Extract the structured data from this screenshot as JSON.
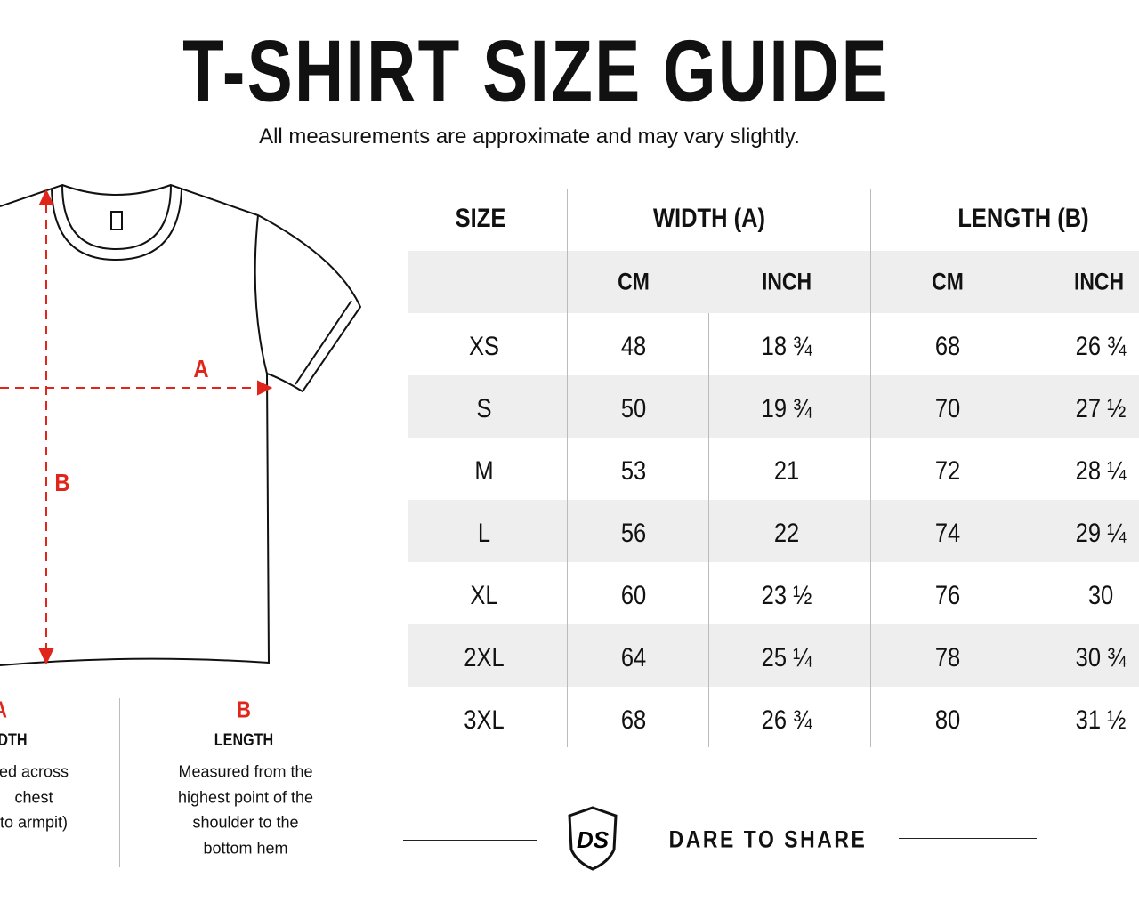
{
  "header": {
    "title": "T-SHIRT SIZE GUIDE",
    "subtitle": "All measurements are approximate and may vary slightly."
  },
  "diagram": {
    "label_a": "A",
    "label_b": "B"
  },
  "table": {
    "columns": [
      "SIZE",
      "WIDTH (A)",
      "LENGTH (B)"
    ],
    "subcolumns": [
      "CM",
      "INCH",
      "CM",
      "INCH"
    ],
    "rows": [
      [
        "XS",
        48,
        "18 ¾",
        68,
        "26 ¾"
      ],
      [
        "S",
        50,
        "19 ¾",
        70,
        "27 ½"
      ],
      [
        "M",
        53,
        21,
        72,
        "28 ¼"
      ],
      [
        "L",
        56,
        22,
        74,
        "29 ¼"
      ],
      [
        "XL",
        60,
        "23 ½",
        76,
        30
      ],
      [
        "2XL",
        64,
        "25 ¼",
        78,
        "30 ¾"
      ],
      [
        "3XL",
        68,
        "26 ¾",
        80,
        "31 ½"
      ]
    ]
  },
  "notes": [
    {
      "letter": "A",
      "title": "DTH",
      "lines": [
        "ed across",
        "chest",
        "to armpit)"
      ]
    },
    {
      "letter": "B",
      "title": "LENGTH",
      "lines": [
        "Measured from the",
        "highest point of the",
        "shoulder to the",
        "bottom hem"
      ]
    }
  ],
  "footer": {
    "logo": "DS",
    "brand": "DARE TO SHARE"
  }
}
